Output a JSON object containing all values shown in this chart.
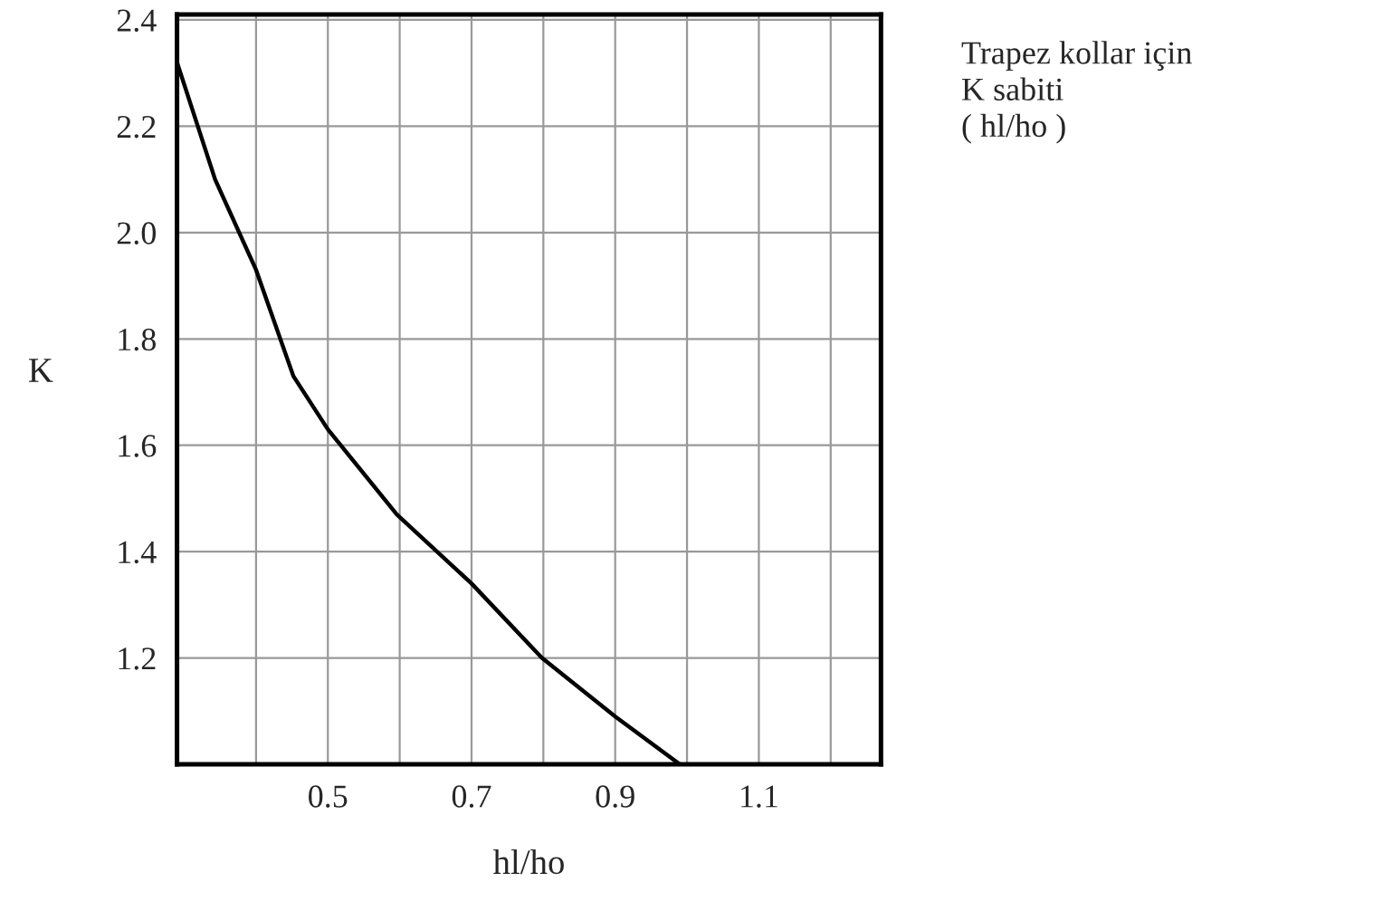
{
  "chart_data": {
    "type": "line",
    "xlabel": "hl/ho",
    "ylabel": "K",
    "annotations": [
      "Trapez kollar için\nK sabiti\n( hl/ho )"
    ],
    "x": [
      0.29,
      0.343,
      0.4,
      0.452,
      0.5,
      0.596,
      0.7,
      0.798,
      0.9,
      0.99
    ],
    "series": [
      {
        "color": "#000000",
        "values": [
          2.32,
          2.1,
          1.93,
          1.73,
          1.63,
          1.47,
          1.34,
          1.2,
          1.09,
          1.0
        ]
      }
    ],
    "xlim": [
      0.29,
      1.27
    ],
    "ylim": [
      1.0,
      2.41
    ],
    "xticks": [
      {
        "value": 0.4,
        "label": null
      },
      0.5,
      {
        "value": 0.6,
        "label": null
      },
      0.7,
      {
        "value": 0.8,
        "label": null
      },
      0.9,
      {
        "value": 1.0,
        "label": null
      },
      1.1,
      {
        "value": 1.2,
        "label": null
      }
    ],
    "yticks": [
      1.2,
      1.4,
      1.6,
      1.8,
      {
        "value": 2.0,
        "label": "2.0"
      },
      2.2,
      2.4
    ],
    "grid": true,
    "legend": false,
    "marker": "none",
    "line_style": "solid"
  }
}
